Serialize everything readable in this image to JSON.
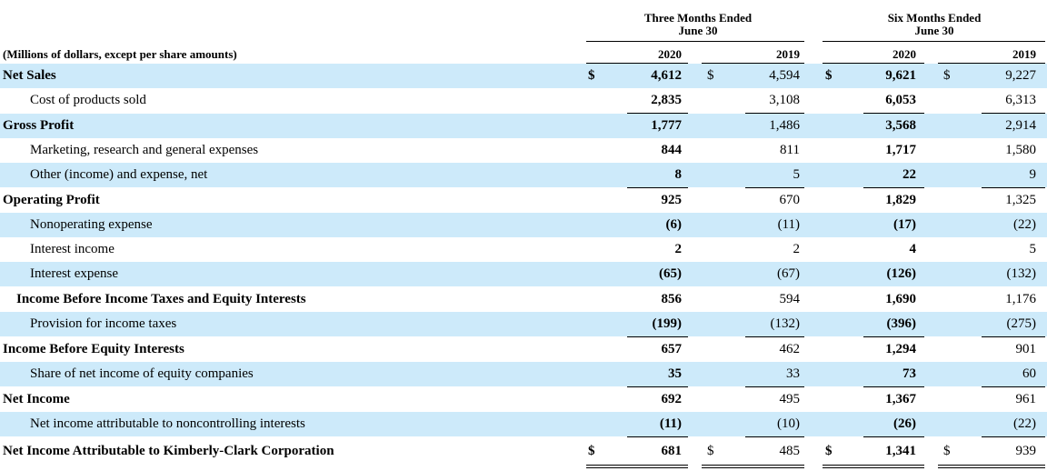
{
  "header": {
    "three_months": "Three Months Ended",
    "three_months_sub": "June 30",
    "six_months": "Six Months Ended",
    "six_months_sub": "June 30",
    "units_label": "(Millions of dollars, except per share amounts)",
    "years": [
      "2020",
      "2019",
      "2020",
      "2019"
    ]
  },
  "currency_symbol": "$",
  "rows": [
    {
      "label": "Net Sales",
      "values": [
        "4,612",
        "4,594",
        "9,621",
        "9,227"
      ],
      "style": "bold",
      "shade": true,
      "dollar": true
    },
    {
      "label": "Cost of products sold",
      "values": [
        "2,835",
        "3,108",
        "6,053",
        "6,313"
      ],
      "style": "ind1",
      "shade": false,
      "dollar": false
    },
    {
      "label": "Gross Profit",
      "values": [
        "1,777",
        "1,486",
        "3,568",
        "2,914"
      ],
      "style": "bold",
      "shade": true,
      "dollar": false
    },
    {
      "label": "Marketing, research and general expenses",
      "values": [
        "844",
        "811",
        "1,717",
        "1,580"
      ],
      "style": "ind1",
      "shade": false,
      "dollar": false
    },
    {
      "label": "Other (income) and expense, net",
      "values": [
        "8",
        "5",
        "22",
        "9"
      ],
      "style": "ind1",
      "shade": true,
      "dollar": false
    },
    {
      "label": "Operating Profit",
      "values": [
        "925",
        "670",
        "1,829",
        "1,325"
      ],
      "style": "bold",
      "shade": false,
      "dollar": false
    },
    {
      "label": "Nonoperating expense",
      "values": [
        "(6)",
        "(11)",
        "(17)",
        "(22)"
      ],
      "style": "ind1",
      "shade": true,
      "dollar": false
    },
    {
      "label": "Interest income",
      "values": [
        "2",
        "2",
        "4",
        "5"
      ],
      "style": "ind1",
      "shade": false,
      "dollar": false
    },
    {
      "label": "Interest expense",
      "values": [
        "(65)",
        "(67)",
        "(126)",
        "(132)"
      ],
      "style": "ind1",
      "shade": true,
      "dollar": false
    },
    {
      "label": "Income Before Income Taxes and Equity Interests",
      "values": [
        "856",
        "594",
        "1,690",
        "1,176"
      ],
      "style": "bold-ind",
      "shade": false,
      "dollar": false
    },
    {
      "label": "Provision for income taxes",
      "values": [
        "(199)",
        "(132)",
        "(396)",
        "(275)"
      ],
      "style": "ind1",
      "shade": true,
      "dollar": false
    },
    {
      "label": "Income Before Equity Interests",
      "values": [
        "657",
        "462",
        "1,294",
        "901"
      ],
      "style": "bold",
      "shade": false,
      "dollar": false
    },
    {
      "label": "Share of net income of equity companies",
      "values": [
        "35",
        "33",
        "73",
        "60"
      ],
      "style": "ind1",
      "shade": true,
      "dollar": false
    },
    {
      "label": "Net Income",
      "values": [
        "692",
        "495",
        "1,367",
        "961"
      ],
      "style": "bold",
      "shade": false,
      "dollar": false
    },
    {
      "label": "Net income attributable to noncontrolling interests",
      "values": [
        "(11)",
        "(10)",
        "(26)",
        "(22)"
      ],
      "style": "ind1",
      "shade": true,
      "dollar": false
    },
    {
      "label": "Net Income Attributable to Kimberly-Clark Corporation",
      "values": [
        "681",
        "485",
        "1,341",
        "939"
      ],
      "style": "bold",
      "shade": false,
      "dollar": true
    }
  ]
}
